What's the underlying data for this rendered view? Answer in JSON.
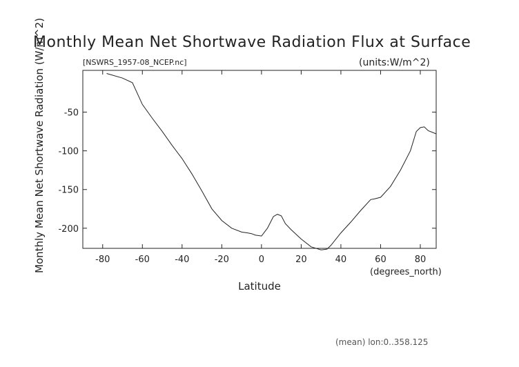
{
  "chart_data": {
    "type": "line",
    "title": "Monthly Mean Net Shortwave Radiation Flux at Surface",
    "subtitle_left": "[NSWRS_1957-08_NCEP.nc]",
    "subtitle_right": "(units:W/m^2)",
    "xlabel": "Latitude",
    "xunits": "(degrees_north)",
    "ylabel": "Monthly Mean Net Shortwave Radiation (W/m^2)",
    "footnote": "(mean) lon:0..358.125",
    "xlim": [
      -90,
      88
    ],
    "ylim": [
      -226,
      4
    ],
    "x_ticks": [
      -80,
      -60,
      -40,
      -20,
      0,
      20,
      40,
      60,
      80
    ],
    "y_ticks": [
      -50,
      -100,
      -150,
      -200
    ],
    "grid": false,
    "x": [
      -78,
      -70,
      -65,
      -60,
      -55,
      -50,
      -45,
      -40,
      -35,
      -30,
      -25,
      -20,
      -15,
      -10,
      -7,
      -5,
      -3,
      0,
      3,
      6,
      8,
      10,
      12,
      15,
      20,
      25,
      30,
      33,
      35,
      40,
      45,
      50,
      55,
      57,
      60,
      65,
      70,
      75,
      78,
      80,
      82,
      84,
      88
    ],
    "y": [
      0,
      -6,
      -12,
      -40,
      -58,
      -75,
      -93,
      -110,
      -130,
      -152,
      -175,
      -190,
      -200,
      -205,
      -206,
      -207,
      -209,
      -210,
      -200,
      -185,
      -182,
      -184,
      -194,
      -202,
      -214,
      -224,
      -228,
      -227,
      -222,
      -206,
      -192,
      -177,
      -163,
      -162,
      -160,
      -146,
      -125,
      -100,
      -75,
      -70,
      -69,
      -74,
      -78
    ]
  }
}
